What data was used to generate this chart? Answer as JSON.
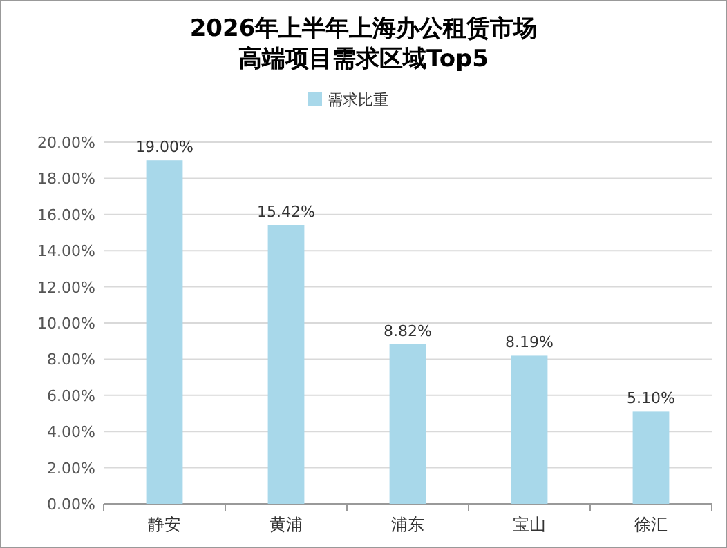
{
  "chart_data": {
    "type": "bar",
    "title": "2026年上半年上海办公租赁市场",
    "subtitle": "高端项目需求区域Top5",
    "categories": [
      "静安",
      "黄浦",
      "浦东",
      "宝山",
      "徐汇"
    ],
    "series": [
      {
        "name": "需求比重",
        "color": "#a8d8ea",
        "values": [
          19.0,
          15.42,
          8.82,
          8.19,
          5.1
        ],
        "value_labels": [
          "19.00%",
          "15.42%",
          "8.82%",
          "8.19%",
          "5.10%"
        ]
      }
    ],
    "ylim": [
      0,
      20
    ],
    "yticks": [
      {
        "value": 0,
        "label": "0.00%"
      },
      {
        "value": 2,
        "label": "2.00%"
      },
      {
        "value": 4,
        "label": "4.00%"
      },
      {
        "value": 6,
        "label": "6.00%"
      },
      {
        "value": 8,
        "label": "8.00%"
      },
      {
        "value": 10,
        "label": "10.00%"
      },
      {
        "value": 12,
        "label": "12.00%"
      },
      {
        "value": 14,
        "label": "14.00%"
      },
      {
        "value": 16,
        "label": "16.00%"
      },
      {
        "value": 18,
        "label": "18.00%"
      },
      {
        "value": 20,
        "label": "20.00%"
      }
    ],
    "grid": "y",
    "legend": "top"
  }
}
